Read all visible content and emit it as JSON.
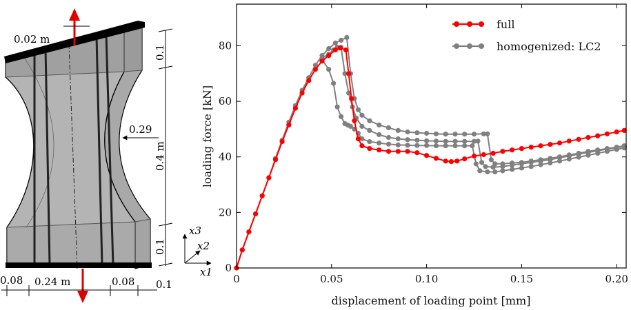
{
  "specimen": {
    "dim_thickness": "0.02 m",
    "dim_top_grip": "0.1",
    "dim_radius": "0.29",
    "dim_height": "0.4 m",
    "dim_bottom_grip": "0.1",
    "dim_left_edge": "0.08",
    "dim_center_width": "0.24 m",
    "dim_right_inner": "0.08",
    "dim_right_edge": "0.1",
    "axis_x3": "x3",
    "axis_x2": "x2",
    "axis_x1": "x1"
  },
  "colors": {
    "full": "#ff0000",
    "homogenized": "#808080"
  },
  "chart_data": {
    "type": "line",
    "title": "",
    "xlabel": "displacement of loading point [mm]",
    "ylabel": "loading force [kN]",
    "xlim": [
      0,
      0.205
    ],
    "ylim": [
      0,
      95
    ],
    "xticks": [
      "0",
      "0.05",
      "0.10",
      "0.15",
      "0.20"
    ],
    "yticks": [
      "0",
      "20",
      "40",
      "60",
      "80"
    ],
    "legend": [
      "full",
      "homogenized: LC2"
    ],
    "legend_position": "top-right",
    "series": [
      {
        "name": "full",
        "color": "#ff0000",
        "x": [
          0,
          0.003,
          0.0065,
          0.01,
          0.0135,
          0.017,
          0.0205,
          0.024,
          0.0275,
          0.031,
          0.0345,
          0.038,
          0.0415,
          0.045,
          0.0485,
          0.052,
          0.0545,
          0.0575,
          0.059,
          0.0605,
          0.062,
          0.064,
          0.066,
          0.07,
          0.075,
          0.08,
          0.085,
          0.09,
          0.095,
          0.1,
          0.105,
          0.11,
          0.113,
          0.116,
          0.12,
          0.125,
          0.13,
          0.135,
          0.14,
          0.145,
          0.15,
          0.155,
          0.16,
          0.165,
          0.17,
          0.175,
          0.18,
          0.185,
          0.19,
          0.195,
          0.2,
          0.204
        ],
        "y": [
          0,
          6.5,
          13,
          19.5,
          26,
          32.5,
          39,
          45.5,
          51.5,
          57.5,
          63,
          67.5,
          71.5,
          74.5,
          76.5,
          78.5,
          79.2,
          78.5,
          70,
          61,
          53,
          46.5,
          44,
          43,
          42.5,
          42,
          42,
          42,
          41.5,
          40.5,
          39.5,
          38.5,
          38.3,
          38.5,
          39.3,
          40.3,
          40.8,
          41.3,
          42,
          42.5,
          43,
          43.5,
          44,
          44.5,
          45,
          45.7,
          46.3,
          47,
          47.6,
          48.3,
          49,
          49.5
        ]
      },
      {
        "name": "homogenized: LC2",
        "color": "#808080",
        "x": [
          0,
          0.003,
          0.0065,
          0.01,
          0.0135,
          0.017,
          0.0205,
          0.024,
          0.0275,
          0.031,
          0.0345,
          0.038,
          0.0415,
          0.045,
          0.0485,
          0.052,
          0.055,
          0.058,
          0.06,
          0.062,
          0.064,
          0.066,
          0.07,
          0.075,
          0.08,
          0.085,
          0.09,
          0.095,
          0.1,
          0.105,
          0.11,
          0.115,
          0.12,
          0.125,
          0.13,
          0.132,
          0.134,
          0.136,
          0.14,
          0.145,
          0.15,
          0.155,
          0.16,
          0.165,
          0.17,
          0.175,
          0.18,
          0.185,
          0.19,
          0.195,
          0.2,
          0.204
        ],
        "y": [
          0,
          6.5,
          13,
          19.5,
          26,
          32.5,
          39.5,
          46,
          52.5,
          58.5,
          64,
          68.5,
          73,
          76.5,
          79,
          81,
          82,
          83,
          70,
          61,
          57,
          55,
          53,
          51.5,
          50.5,
          49.5,
          49,
          48.7,
          48.5,
          48.3,
          48.2,
          48.2,
          48.2,
          48.2,
          48.3,
          48.3,
          39,
          37.5,
          37.5,
          37.8,
          38,
          38.5,
          39,
          39.5,
          40,
          40.7,
          41.3,
          42,
          42.5,
          43,
          43.5,
          44
        ]
      },
      {
        "name": "homogenized: LC2",
        "color": "#808080",
        "x": [
          0.045,
          0.0485,
          0.051,
          0.053,
          0.055,
          0.057,
          0.059,
          0.061,
          0.063,
          0.066,
          0.07,
          0.075,
          0.08,
          0.085,
          0.09,
          0.095,
          0.1,
          0.105,
          0.11,
          0.115,
          0.12,
          0.125,
          0.127,
          0.129,
          0.131,
          0.135,
          0.14,
          0.145,
          0.15,
          0.155,
          0.16,
          0.165,
          0.17,
          0.175,
          0.18,
          0.185,
          0.19,
          0.195,
          0.2,
          0.204
        ],
        "y": [
          75.5,
          77,
          78.5,
          79.5,
          79.5,
          70,
          63,
          58,
          54,
          51,
          49.5,
          48,
          47,
          46.5,
          46.2,
          46,
          45.8,
          45.7,
          45.6,
          45.6,
          45.6,
          45.6,
          45.7,
          38,
          36.5,
          36.3,
          36.5,
          37,
          37.5,
          38,
          38.5,
          39,
          39.7,
          40.3,
          41,
          41.6,
          42.2,
          42.8,
          43.3,
          43.8
        ]
      },
      {
        "name": "homogenized: LC2",
        "color": "#808080",
        "x": [
          0.045,
          0.0485,
          0.051,
          0.053,
          0.055,
          0.057,
          0.0585,
          0.06,
          0.062,
          0.064,
          0.066,
          0.07,
          0.075,
          0.08,
          0.085,
          0.09,
          0.095,
          0.1,
          0.105,
          0.11,
          0.115,
          0.12,
          0.124,
          0.126,
          0.128,
          0.132,
          0.136,
          0.14,
          0.145,
          0.15,
          0.155,
          0.16,
          0.165,
          0.17,
          0.175,
          0.18,
          0.185,
          0.19,
          0.195,
          0.2,
          0.204
        ],
        "y": [
          75,
          71.5,
          66.5,
          58,
          54.5,
          52,
          51.5,
          51,
          50,
          48.5,
          46.5,
          45.5,
          45,
          44.6,
          44.3,
          44.2,
          44.1,
          44.1,
          44,
          44,
          44,
          44,
          44,
          37.5,
          35,
          34.6,
          34.6,
          35,
          35.5,
          36,
          36.5,
          37.2,
          37.8,
          38.5,
          39.2,
          39.9,
          40.6,
          41.3,
          42,
          42.7,
          43.2
        ]
      }
    ]
  }
}
